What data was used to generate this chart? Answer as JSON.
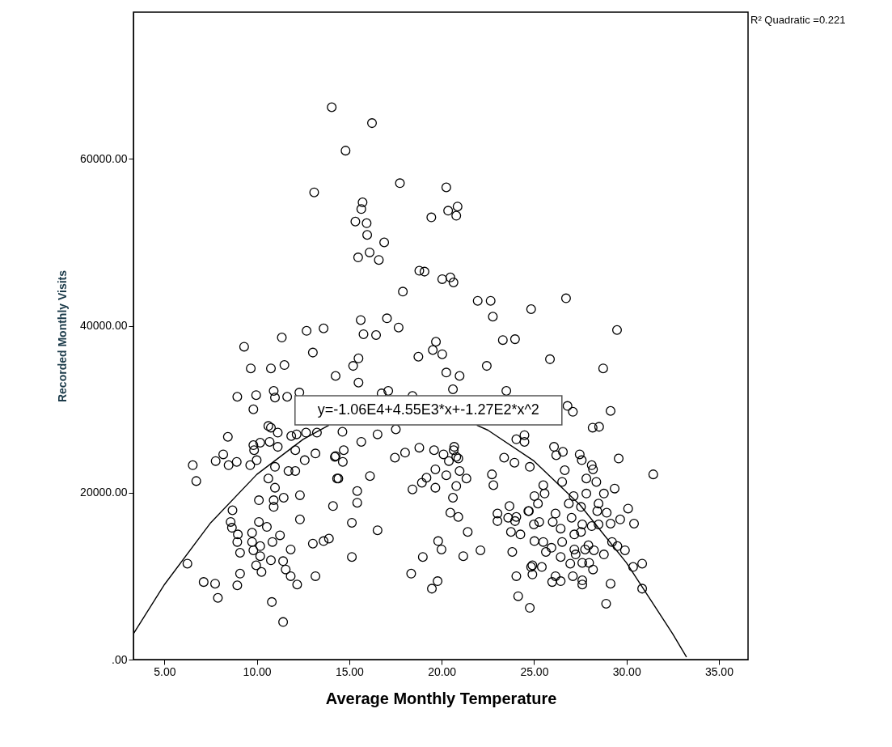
{
  "chart_data": {
    "type": "scatter",
    "xlabel": "Average Monthly Temperature",
    "ylabel": "Recorded Monthly Visits",
    "xlim": [
      3.32,
      36.58
    ],
    "ylim": [
      0,
      77600
    ],
    "xticks": [
      {
        "value": 5,
        "label": "5.00"
      },
      {
        "value": 10,
        "label": "10.00"
      },
      {
        "value": 15,
        "label": "15.00"
      },
      {
        "value": 20,
        "label": "20.00"
      },
      {
        "value": 25,
        "label": "25.00"
      },
      {
        "value": 30,
        "label": "30.00"
      },
      {
        "value": 35,
        "label": "35.00"
      }
    ],
    "yticks": [
      {
        "value": 0,
        "label": ".00"
      },
      {
        "value": 20000,
        "label": "20000.00"
      },
      {
        "value": 40000,
        "label": "40000.00"
      },
      {
        "value": 60000,
        "label": "60000.00"
      }
    ],
    "marker": "circle",
    "annotations": [
      "R² Quadratic =0.221",
      "y=-1.06E4+4.55E3*x+-1.27E2*x^2"
    ],
    "series": [
      {
        "color": "#000000",
        "x": [
          14.05,
          13.1,
          9.31,
          11.35,
          12.69,
          13.61,
          13.03,
          9.67,
          10.76,
          11.49,
          16.23,
          14.8,
          17.74,
          20.25,
          15.72,
          15.65,
          20.35,
          20.86,
          20.79,
          19.44,
          15.33,
          15.94,
          15.97,
          16.89,
          15.48,
          16.1,
          16.6,
          18.79,
          19.07,
          20.03,
          20.47,
          20.64,
          17.9,
          21.95,
          22.65,
          22.77,
          24.84,
          23.31,
          23.97,
          15.62,
          17.04,
          17.67,
          15.77,
          16.45,
          18.74,
          19.52,
          19.69,
          20.03,
          15.5,
          15.21,
          22.44,
          26.73,
          29.49,
          25.86,
          28.74,
          8.94,
          9.96,
          9.81,
          10.91,
          10.98,
          11.64,
          12.3,
          14.26,
          8.43,
          10.62,
          10.76,
          11.13,
          9.81,
          10.18,
          10.69,
          11.86,
          12.15,
          12.66,
          13.25,
          6.53,
          6.72,
          7.77,
          8.18,
          8.47,
          8.91,
          9.64,
          9.85,
          9.99,
          11.13,
          10.98,
          11.71,
          12.08,
          12.08,
          12.59,
          13.17,
          14.22,
          10.62,
          10.98,
          10.11,
          10.91,
          10.91,
          11.45,
          12.33,
          14.34,
          14.12,
          12.33,
          8.68,
          8.58,
          8.65,
          8.97,
          8.94,
          9.09,
          10.11,
          10.54,
          9.74,
          9.74,
          10.18,
          9.81,
          10.18,
          10.84,
          11.25,
          11.83,
          13.03,
          13.61,
          13.9,
          10.76,
          9.96,
          10.25,
          11.42,
          11.56,
          11.83,
          12.18,
          13.17,
          9.09,
          8.94,
          6.24,
          7.12,
          7.74,
          7.89,
          10.81,
          11.42,
          15.5,
          20.25,
          20.97,
          20.61,
          23.5,
          17.11,
          16.75,
          18.42,
          14.63,
          15.65,
          16.53,
          17.52,
          14.26,
          14.7,
          14.65,
          14.41,
          16.12,
          15.43,
          15.43,
          15.14,
          16.53,
          15.14,
          17.47,
          18.02,
          18.79,
          19.59,
          20.1,
          20.68,
          20.65,
          20.79,
          20.39,
          20.9,
          19.66,
          20.25,
          20.97,
          21.34,
          19.18,
          18.93,
          18.42,
          19.66,
          20.79,
          20.61,
          20.47,
          20.9,
          21.41,
          22.72,
          22.8,
          19.81,
          19.99,
          18.98,
          21.17,
          22.1,
          18.35,
          19.47,
          19.78,
          23.38,
          23.94,
          24.04,
          24.48,
          24.48,
          24.77,
          23.02,
          23.02,
          23.67,
          23.6,
          24.04,
          23.97,
          23.75,
          24.26,
          24.69,
          23.82,
          24.04,
          24.14,
          24.77,
          24.84,
          26.81,
          27.1,
          29.14,
          28.17,
          28.52,
          26.08,
          26.2,
          26.56,
          27.47,
          27.58,
          28.12,
          28.19,
          29.58,
          31.45,
          26.66,
          25.5,
          26.52,
          27.83,
          28.37,
          29.36,
          28.78,
          25.02,
          25.57,
          25.21,
          27.14,
          27.83,
          26.88,
          27.54,
          28.49,
          28.42,
          28.93,
          30.09,
          29.66,
          30.41,
          24.72,
          24.99,
          25.28,
          26.16,
          26.01,
          26.44,
          27.03,
          27.61,
          28.12,
          28.49,
          29.14,
          25.02,
          25.5,
          25.94,
          25.64,
          26.52,
          27.18,
          27.54,
          27.18,
          27.76,
          27.25,
          27.94,
          28.24,
          28.78,
          29.22,
          29.51,
          29.92,
          26.44,
          26.96,
          27.61,
          27.98,
          28.19,
          24.91,
          25.42,
          24.91,
          26.16,
          25.98,
          26.44,
          27.61,
          27.61,
          27.1,
          29.14,
          30.36,
          30.85,
          30.85,
          28.9
        ],
        "values": [
          66200,
          56000,
          37500,
          38600,
          39400,
          39700,
          36800,
          34900,
          34900,
          35300,
          64300,
          61000,
          57100,
          56600,
          54800,
          54000,
          53800,
          54300,
          53200,
          53000,
          52500,
          52300,
          50900,
          50000,
          48200,
          48800,
          47900,
          46600,
          46500,
          45600,
          45800,
          45200,
          44100,
          43000,
          43000,
          41100,
          42000,
          38300,
          38400,
          40700,
          40900,
          39800,
          39000,
          38900,
          36300,
          37100,
          38100,
          36600,
          36100,
          35200,
          35200,
          43300,
          39500,
          36000,
          34900,
          31500,
          31700,
          30000,
          32200,
          31400,
          31500,
          32000,
          34000,
          26700,
          28000,
          27800,
          27200,
          25700,
          26000,
          26100,
          26800,
          27000,
          27200,
          27200,
          23300,
          21400,
          23800,
          24600,
          23300,
          23700,
          23300,
          25100,
          23900,
          25500,
          23100,
          22600,
          22600,
          25100,
          23900,
          24700,
          24300,
          21700,
          20600,
          19100,
          19100,
          18300,
          19400,
          19700,
          21700,
          18400,
          16800,
          17900,
          16500,
          15800,
          15000,
          14100,
          12800,
          16500,
          15900,
          15200,
          14100,
          13600,
          13100,
          12400,
          14100,
          14900,
          13200,
          13900,
          14200,
          14500,
          11900,
          11300,
          10500,
          11800,
          10800,
          10000,
          9000,
          10000,
          10300,
          8900,
          11500,
          9300,
          9100,
          7400,
          6900,
          4500,
          33200,
          34400,
          34000,
          32400,
          32200,
          32200,
          31900,
          31600,
          27300,
          26100,
          27000,
          27600,
          24400,
          25100,
          23700,
          21700,
          22000,
          20200,
          18800,
          16400,
          15500,
          12300,
          24200,
          24800,
          25400,
          25100,
          24600,
          25500,
          25100,
          24300,
          23800,
          24100,
          22800,
          22100,
          22600,
          21700,
          21800,
          21200,
          20400,
          20600,
          20800,
          19400,
          17600,
          17100,
          15300,
          22200,
          20900,
          14200,
          13200,
          12300,
          12400,
          13100,
          10300,
          8500,
          9400,
          24200,
          23600,
          26400,
          26900,
          26100,
          23100,
          17500,
          16600,
          18400,
          17000,
          17100,
          16600,
          15300,
          15000,
          17800,
          12900,
          10000,
          7600,
          6200,
          11100,
          30400,
          29700,
          29800,
          27800,
          27900,
          25500,
          24500,
          24900,
          24600,
          23900,
          23300,
          22800,
          24100,
          22200,
          22700,
          20900,
          21300,
          21700,
          21300,
          20500,
          19900,
          19600,
          19900,
          18700,
          19600,
          19900,
          18700,
          18300,
          18700,
          17800,
          17600,
          18100,
          16800,
          16300,
          17800,
          16200,
          16500,
          17500,
          16500,
          15700,
          17000,
          16200,
          16000,
          16200,
          16300,
          14200,
          14100,
          13400,
          12900,
          14100,
          15000,
          15300,
          13200,
          13200,
          12600,
          13700,
          13100,
          12600,
          14100,
          13600,
          13100,
          12300,
          11500,
          11600,
          11600,
          10800,
          11300,
          11100,
          10200,
          10000,
          9300,
          9400,
          9500,
          9000,
          10000,
          9100,
          11100,
          11500,
          8500,
          6700
        ]
      },
      {
        "type": "line",
        "color": "#000000",
        "marker": "none",
        "x": [
          3.32,
          5,
          7.5,
          10,
          12.5,
          13.9,
          17.5,
          21.9,
          22.5,
          25,
          27.5,
          30,
          32.5,
          33.25
        ],
        "values": [
          3100,
          9000,
          16400,
          22200,
          26400,
          28100,
          null,
          28100,
          27500,
          23800,
          18500,
          11600,
          3100,
          300
        ]
      }
    ]
  }
}
